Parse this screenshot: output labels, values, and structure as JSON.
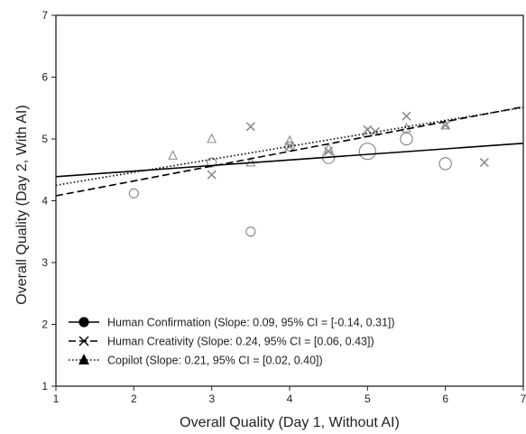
{
  "chart_data": {
    "type": "scatter",
    "xlabel": "Overall Quality (Day 1, Without AI)",
    "ylabel": "Overall Quality (Day 2, With AI)",
    "xlim": [
      1,
      7
    ],
    "ylim": [
      1,
      7
    ],
    "xticks": [
      "1",
      "2",
      "3",
      "4",
      "5",
      "6",
      "7"
    ],
    "yticks": [
      "1",
      "2",
      "3",
      "4",
      "5",
      "6",
      "7"
    ],
    "grid": false,
    "legend_position": "bottom-left",
    "marker_color": "#8c8c8c",
    "line_color": "#000000",
    "series": [
      {
        "name": "Human Confirmation (Slope: 0.09, 95% CI = [-0.14, 0.31])",
        "marker": "circle",
        "line_style": "solid",
        "fit": {
          "intercept": 4.3,
          "slope": 0.09
        },
        "points": [
          {
            "x": 2.0,
            "y": 4.12,
            "n": 1
          },
          {
            "x": 3.0,
            "y": 4.62,
            "n": 1
          },
          {
            "x": 3.5,
            "y": 3.5,
            "n": 1
          },
          {
            "x": 4.0,
            "y": 4.88,
            "n": 1
          },
          {
            "x": 4.5,
            "y": 4.7,
            "n": 2
          },
          {
            "x": 5.0,
            "y": 4.8,
            "n": 4
          },
          {
            "x": 5.5,
            "y": 5.0,
            "n": 2
          },
          {
            "x": 6.0,
            "y": 4.6,
            "n": 2
          }
        ]
      },
      {
        "name": "Human Creativity (Slope: 0.24, 95% CI = [0.06, 0.43])",
        "marker": "x",
        "line_style": "dashed",
        "fit": {
          "intercept": 3.84,
          "slope": 0.24
        },
        "points": [
          {
            "x": 3.0,
            "y": 4.42
          },
          {
            "x": 3.5,
            "y": 5.2
          },
          {
            "x": 4.0,
            "y": 4.88
          },
          {
            "x": 4.5,
            "y": 4.8
          },
          {
            "x": 5.0,
            "y": 5.15
          },
          {
            "x": 5.1,
            "y": 5.12
          },
          {
            "x": 5.5,
            "y": 5.37
          },
          {
            "x": 6.0,
            "y": 5.22
          },
          {
            "x": 6.5,
            "y": 4.62
          }
        ]
      },
      {
        "name": "Copilot (Slope: 0.21, 95% CI = [0.02, 0.40])",
        "marker": "triangle",
        "line_style": "dotted",
        "fit": {
          "intercept": 4.04,
          "slope": 0.21
        },
        "points": [
          {
            "x": 2.5,
            "y": 4.73
          },
          {
            "x": 3.0,
            "y": 5.0
          },
          {
            "x": 3.5,
            "y": 4.62
          },
          {
            "x": 4.0,
            "y": 4.97
          },
          {
            "x": 4.5,
            "y": 4.85
          },
          {
            "x": 5.0,
            "y": 5.1
          },
          {
            "x": 5.5,
            "y": 5.17
          },
          {
            "x": 6.0,
            "y": 5.22
          }
        ]
      }
    ]
  }
}
